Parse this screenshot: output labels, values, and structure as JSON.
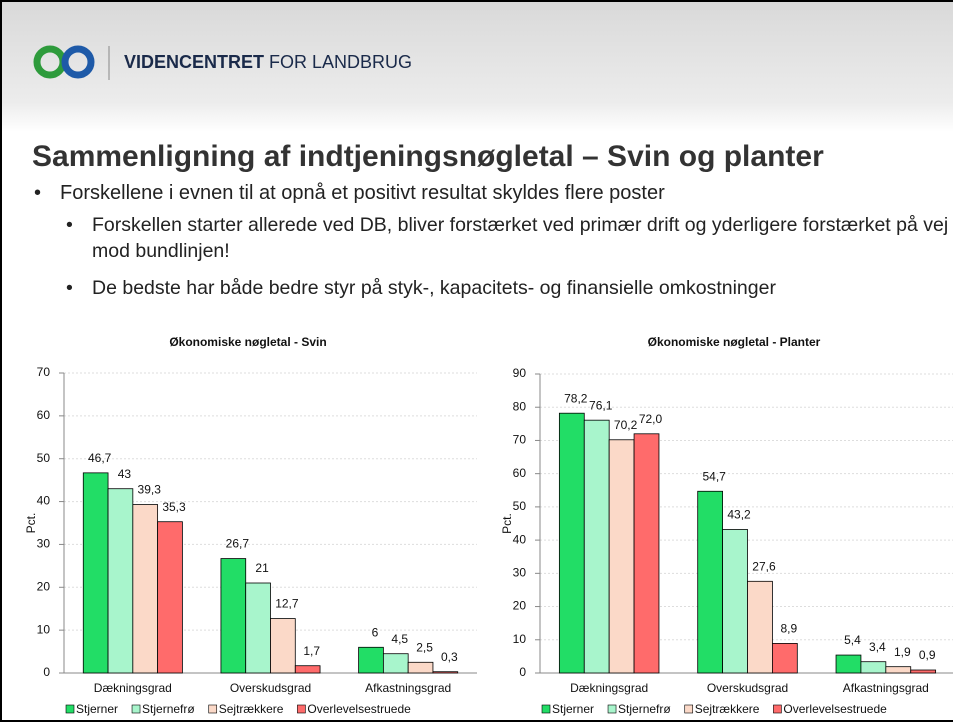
{
  "header": {
    "brand_bold": "VIDENCENTRET",
    "brand_rest": "FOR LANDBRUG"
  },
  "title": "Sammenligning af indtjeningsnøgletal – Svin og planter",
  "bullets": [
    {
      "text": "Forskellene i evnen til at opnå et positivt resultat skyldes flere poster",
      "level": 1
    },
    {
      "text": "Forskellen starter allerede ved DB, bliver forstærket ved primær drift og yderligere forstærket på vej mod bundlinjen!",
      "level": 2
    },
    {
      "text": "De bedste har både bedre styr på styk-, kapacitets- og finansielle omkostninger",
      "level": 2
    }
  ],
  "chart_data": [
    {
      "type": "bar",
      "title": "Økonomiske nøgletal - Svin",
      "y_label": "Pct.",
      "categories": [
        "Dækningsgrad",
        "Overskudsgrad",
        "Afkastningsgrad"
      ],
      "series": [
        {
          "name": "Stjerner",
          "color": "#22dd66",
          "values": [
            46.7,
            26.7,
            6
          ],
          "value_labels": [
            "46,7",
            "26,7",
            "6"
          ]
        },
        {
          "name": "Stjernefrø",
          "color": "#a8f5cc",
          "values": [
            43,
            21,
            4.5
          ],
          "value_labels": [
            "43",
            "21",
            "4,5"
          ]
        },
        {
          "name": "Sejtrækkere",
          "color": "#fbd9c8",
          "values": [
            39.3,
            12.7,
            2.5
          ],
          "value_labels": [
            "39,3",
            "12,7",
            "2,5"
          ]
        },
        {
          "name": "Overlevelsestruede",
          "color": "#ff6b6b",
          "values": [
            35.3,
            1.7,
            0.3
          ],
          "value_labels": [
            "35,3",
            "1,7",
            "0,3"
          ]
        }
      ],
      "ylim": [
        0,
        70
      ],
      "yticks": [
        0,
        10,
        20,
        30,
        40,
        50,
        60,
        70
      ],
      "grid": true,
      "legend": "bottom"
    },
    {
      "type": "bar",
      "title": "Økonomiske nøgletal - Planter",
      "y_label": "Pct.",
      "categories": [
        "Dækningsgrad",
        "Overskudsgrad",
        "Afkastningsgrad"
      ],
      "series": [
        {
          "name": "Stjerner",
          "color": "#22dd66",
          "values": [
            78.2,
            54.7,
            5.4
          ],
          "value_labels": [
            "78,2",
            "54,7",
            "5,4"
          ]
        },
        {
          "name": "Stjernefrø",
          "color": "#a8f5cc",
          "values": [
            76.1,
            43.2,
            3.4
          ],
          "value_labels": [
            "76,1",
            "43,2",
            "3,4"
          ]
        },
        {
          "name": "Sejtrækkere",
          "color": "#fbd9c8",
          "values": [
            70.2,
            27.6,
            1.9
          ],
          "value_labels": [
            "70,2",
            "27,6",
            "1,9"
          ]
        },
        {
          "name": "Overlevelsestruede",
          "color": "#ff6b6b",
          "values": [
            72.0,
            8.9,
            0.9
          ],
          "value_labels": [
            "72,0",
            "8,9",
            "0,9"
          ]
        }
      ],
      "ylim": [
        0,
        90
      ],
      "yticks": [
        0,
        10,
        20,
        30,
        40,
        50,
        60,
        70,
        80,
        90
      ],
      "grid": true,
      "legend": "bottom"
    }
  ]
}
